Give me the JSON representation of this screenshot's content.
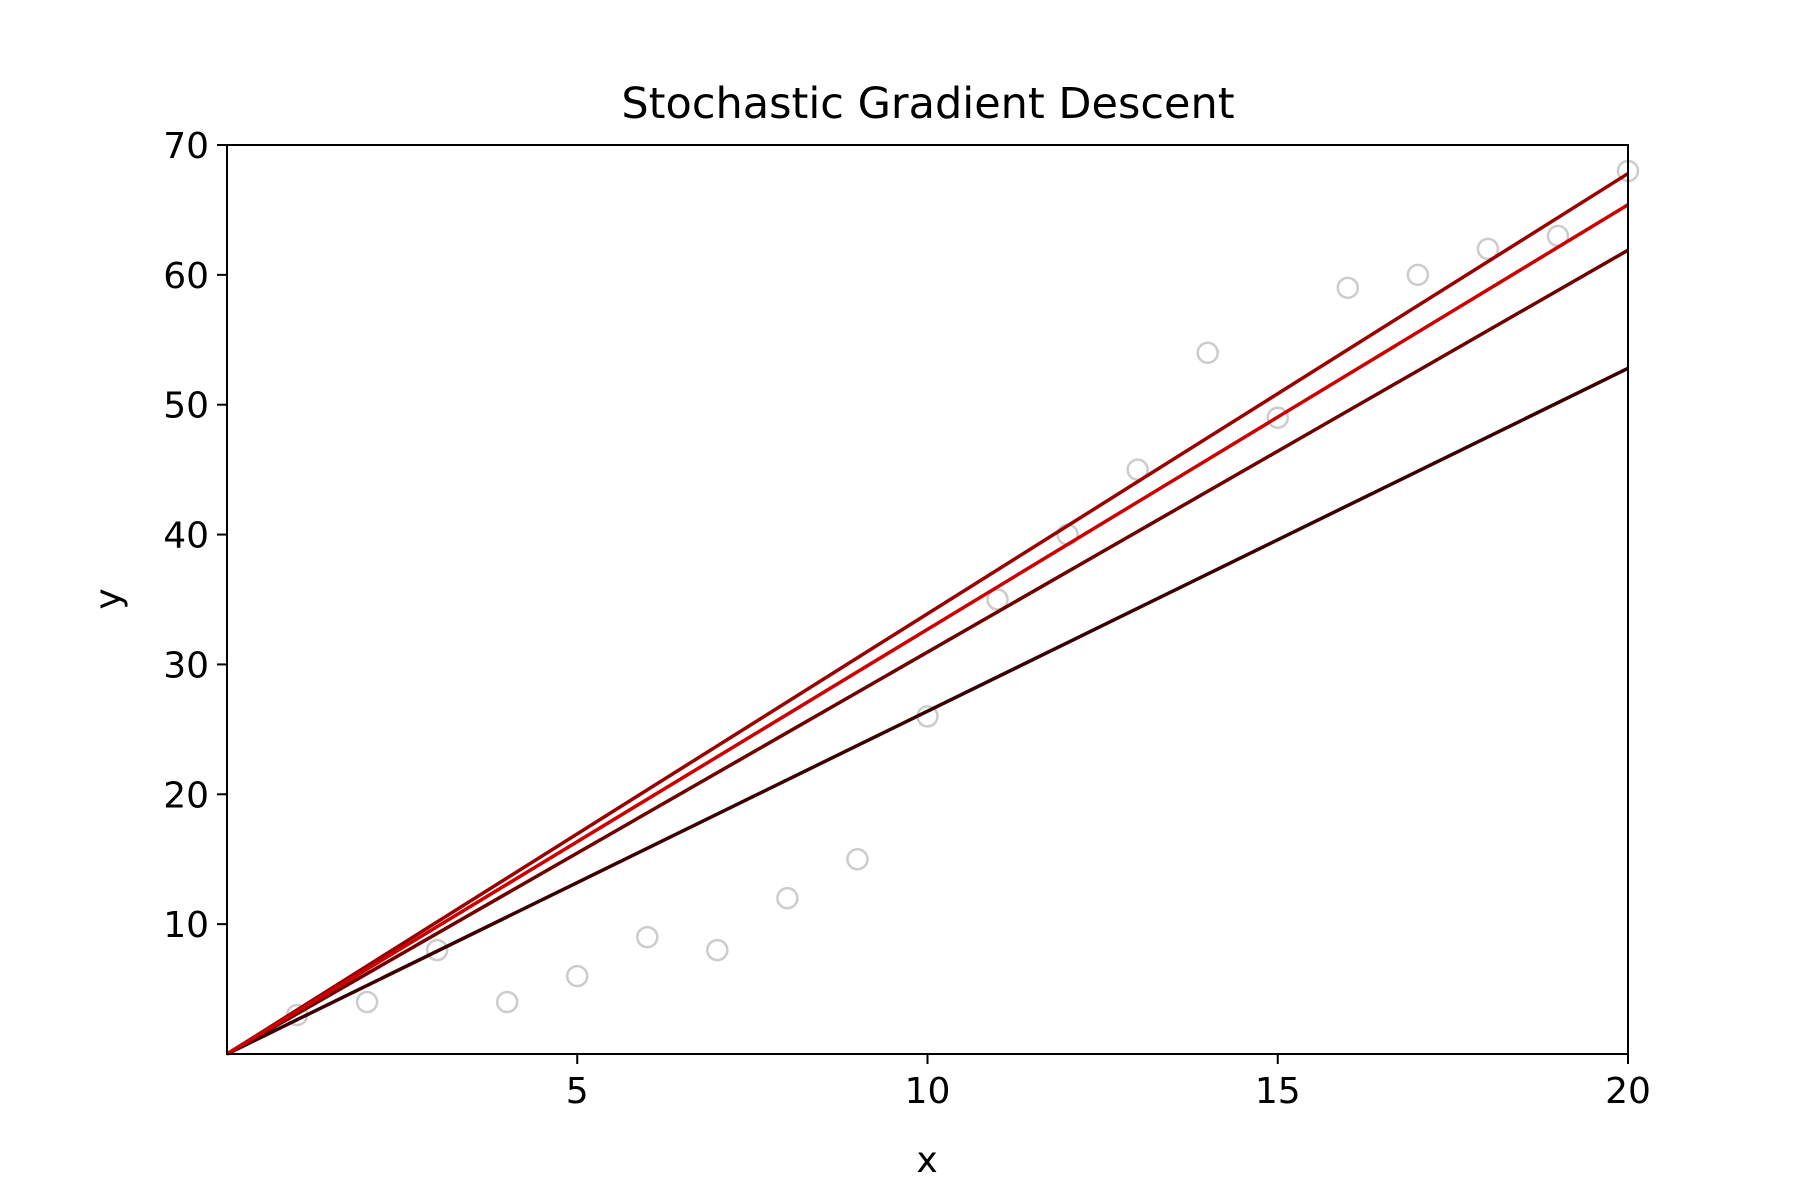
{
  "chart_data": {
    "type": "scatter",
    "title": "Stochastic Gradient Descent",
    "xlabel": "x",
    "ylabel": "y",
    "xlim": [
      0,
      20
    ],
    "ylim": [
      0,
      70
    ],
    "x_ticks": [
      5,
      10,
      15,
      20
    ],
    "y_ticks": [
      10,
      20,
      30,
      40,
      50,
      60,
      70
    ],
    "grid": false,
    "points": {
      "color": "#cccccc",
      "marker": "open-circle",
      "x": [
        1,
        2,
        3,
        4,
        5,
        6,
        7,
        8,
        9,
        10,
        11,
        12,
        13,
        14,
        15,
        16,
        17,
        18,
        19,
        20
      ],
      "y": [
        3,
        4,
        8,
        4,
        6,
        9,
        8,
        12,
        15,
        26,
        35,
        40,
        45,
        54,
        49,
        59,
        60,
        62,
        63,
        68
      ]
    },
    "fit_lines": [
      {
        "x": [
          0,
          20
        ],
        "y": [
          0,
          52.8
        ],
        "color": "#3a0000"
      },
      {
        "x": [
          0,
          20
        ],
        "y": [
          0,
          61.9
        ],
        "color": "#6e0000"
      },
      {
        "x": [
          0,
          20
        ],
        "y": [
          0,
          67.8
        ],
        "color": "#990000"
      },
      {
        "x": [
          0,
          20
        ],
        "y": [
          0,
          65.4
        ],
        "color": "#cc0000"
      }
    ]
  }
}
